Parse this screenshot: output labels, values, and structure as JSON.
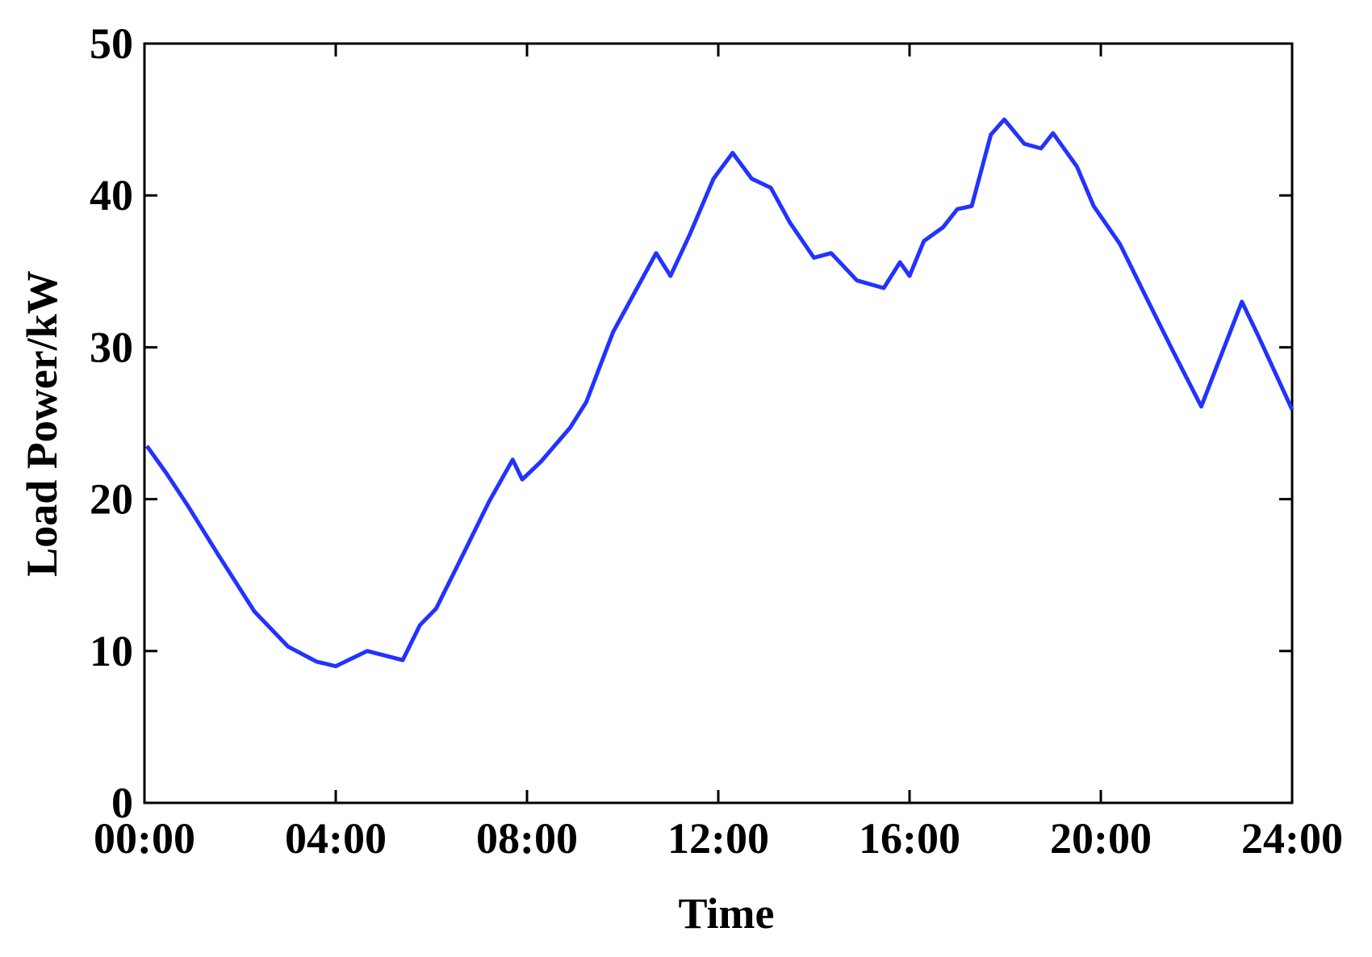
{
  "chart_data": {
    "type": "line",
    "xlabel": "Time",
    "ylabel": "Load Power/kW",
    "x": [
      0.05,
      0.46,
      0.9,
      1.55,
      2.3,
      3.0,
      3.6,
      4.0,
      4.66,
      5.4,
      5.76,
      6.1,
      6.7,
      7.2,
      7.7,
      7.9,
      8.3,
      8.9,
      9.24,
      9.8,
      10.7,
      11.0,
      11.4,
      11.9,
      12.3,
      12.7,
      13.1,
      13.5,
      14.0,
      14.36,
      14.9,
      15.46,
      15.8,
      16.0,
      16.3,
      16.7,
      17.0,
      17.3,
      17.7,
      17.98,
      18.4,
      18.75,
      19.0,
      19.5,
      19.85,
      20.4,
      20.9,
      21.5,
      22.1,
      22.95,
      23.3,
      24.0
    ],
    "series": [
      {
        "name": "Load",
        "color": "#2233ff",
        "values": [
          23.5,
          21.7,
          19.6,
          16.3,
          12.6,
          10.3,
          9.3,
          9.0,
          10.0,
          9.4,
          11.7,
          12.8,
          16.6,
          19.8,
          22.6,
          21.3,
          22.5,
          24.7,
          26.4,
          31.0,
          36.2,
          34.7,
          37.4,
          41.1,
          42.8,
          41.1,
          40.5,
          38.2,
          35.9,
          36.2,
          34.4,
          33.9,
          35.6,
          34.7,
          37.0,
          37.9,
          39.1,
          39.3,
          44.0,
          45.0,
          43.4,
          43.1,
          44.1,
          41.9,
          39.3,
          36.8,
          33.6,
          29.8,
          26.1,
          33.0,
          30.7,
          25.9
        ]
      }
    ],
    "xlim": [
      0,
      24
    ],
    "xticks": [
      {
        "value": 0,
        "label": "00:00"
      },
      {
        "value": 4,
        "label": "04:00"
      },
      {
        "value": 8,
        "label": "08:00"
      },
      {
        "value": 12,
        "label": "12:00"
      },
      {
        "value": 16,
        "label": "16:00"
      },
      {
        "value": 20,
        "label": "20:00"
      },
      {
        "value": 24,
        "label": "24:00"
      }
    ],
    "ylim": [
      0,
      50
    ],
    "yticks": [
      0,
      10,
      20,
      30,
      40,
      50
    ],
    "grid": false
  }
}
